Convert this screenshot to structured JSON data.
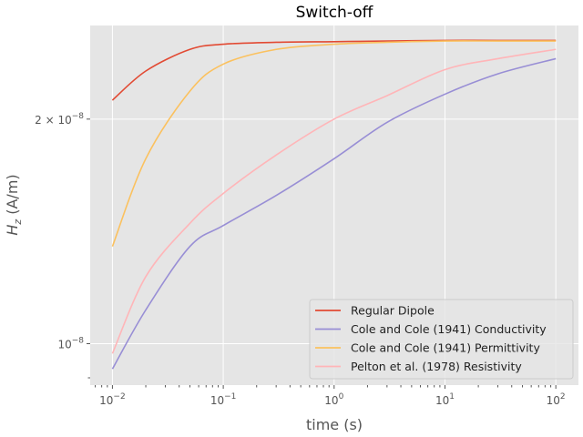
{
  "chart_data": {
    "type": "line",
    "title": "Switch-off",
    "xlabel": "time (s)",
    "ylabel_main": "H",
    "ylabel_sub": "z",
    "ylabel_unit": " (A/m)",
    "xscale": "log",
    "yscale": "log",
    "xlim": [
      0.0063,
      160
    ],
    "ylim": [
      8.8e-09,
      2.67e-08
    ],
    "grid": true,
    "legend_position": "lower-right",
    "x_ticks": [
      {
        "value": 0.01,
        "base": "10",
        "exp": "−2"
      },
      {
        "value": 0.1,
        "base": "10",
        "exp": "−1"
      },
      {
        "value": 1,
        "base": "10",
        "exp": "0"
      },
      {
        "value": 10,
        "base": "10",
        "exp": "1"
      },
      {
        "value": 100,
        "base": "10",
        "exp": "2"
      }
    ],
    "y_ticks": [
      {
        "value": 1e-08,
        "base": "10",
        "exp": "−8"
      },
      {
        "value": 2e-08,
        "base": "2 × 10",
        "exp": "−8"
      }
    ],
    "x": [
      0.01,
      0.02,
      0.05,
      0.1,
      0.3,
      1,
      3,
      10,
      30,
      100
    ],
    "series": [
      {
        "name": "Regular Dipole",
        "color": "#E24A33",
        "values": [
          2.12e-08,
          2.32e-08,
          2.48e-08,
          2.52e-08,
          2.535e-08,
          2.54e-08,
          2.545e-08,
          2.55e-08,
          2.55e-08,
          2.55e-08
        ]
      },
      {
        "name": "Cole and Cole (1941) Conductivity",
        "color": "#988ED5",
        "values": [
          9.25e-09,
          1.11e-08,
          1.35e-08,
          1.44e-08,
          1.58e-08,
          1.77e-08,
          1.98e-08,
          2.16e-08,
          2.3e-08,
          2.41e-08
        ]
      },
      {
        "name": "Cole and Cole (1941) Permittivity",
        "color": "#FBC15E",
        "values": [
          1.35e-08,
          1.77e-08,
          2.18e-08,
          2.37e-08,
          2.48e-08,
          2.52e-08,
          2.535e-08,
          2.545e-08,
          2.545e-08,
          2.545e-08
        ]
      },
      {
        "name": "Pelton et al. (1978) Resistivity",
        "color": "#FFB5B8",
        "values": [
          9.7e-09,
          1.23e-08,
          1.45e-08,
          1.59e-08,
          1.79e-08,
          2e-08,
          2.15e-08,
          2.33e-08,
          2.41e-08,
          2.48e-08
        ]
      }
    ]
  }
}
